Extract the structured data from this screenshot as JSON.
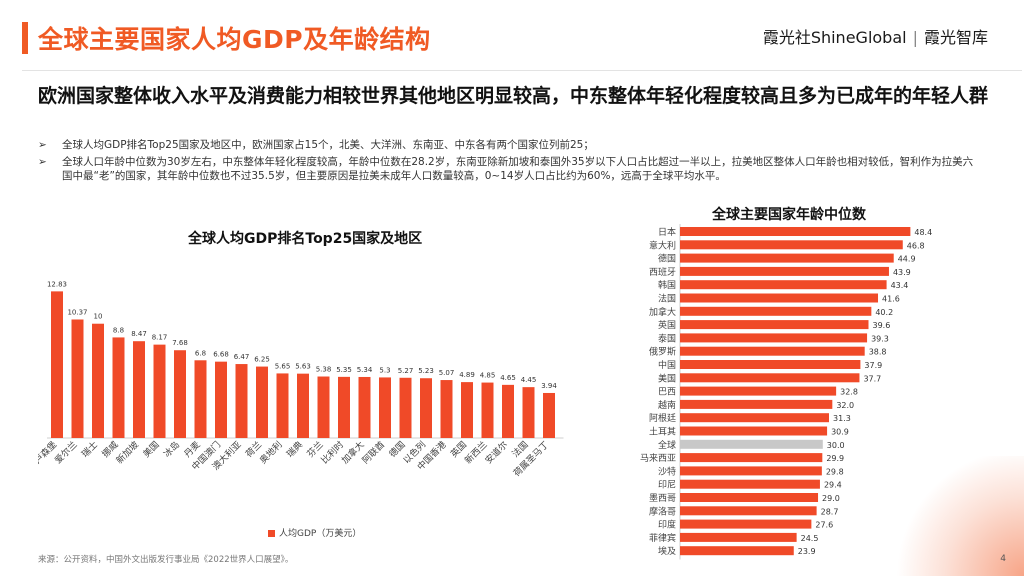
{
  "page": {
    "title": "全球主要国家人均GDP及年龄结构",
    "logo": {
      "left": "霞光社ShineGlobal",
      "right": "霞光智库"
    },
    "subtitle": "欧洲国家整体收入水平及消费能力相较世界其他地区明显较高，中东整体年轻化程度较高且多为已成年的年轻人群",
    "bullets": [
      "全球人均GDP排名Top25国家及地区中，欧洲国家占15个，北美、大洋洲、东南亚、中东各有两个国家位列前25；",
      "全球人口年龄中位数为30岁左右，中东整体年轻化程度较高，年龄中位数在28.2岁，东南亚除新加坡和泰国外35岁以下人口占比超过一半以上，拉美地区整体人口年龄也相对较低，智利作为拉美六国中最“老”的国家，其年龄中位数也不过35.5岁，但主要原因是拉美未成年人口数量较高，0~14岁人口占比约为60%，远高于全球平均水平。"
    ],
    "bullet_marker": "➢",
    "source": "来源：公开资料，中国外文出版发行事业局《2022世界人口展望》。",
    "page_number": "4"
  },
  "colors": {
    "accent": "#F05A24",
    "bar": "#F04A28",
    "highlight": "#C8C8C8"
  },
  "chart_data": [
    {
      "type": "bar",
      "orientation": "vertical",
      "title": "全球人均GDP排名Top25国家及地区",
      "legend": "人均GDP（万美元）",
      "legend_position": "bottom-left",
      "categories": [
        "卢森堡",
        "爱尔兰",
        "瑞士",
        "挪威",
        "新加坡",
        "美国",
        "冰岛",
        "丹麦",
        "中国澳门",
        "澳大利亚",
        "荷兰",
        "奥地利",
        "瑞典",
        "芬兰",
        "比利时",
        "加拿大",
        "阿联酋",
        "德国",
        "以色列",
        "中国香港",
        "英国",
        "新西兰",
        "安道尔",
        "法国",
        "荷属圣马丁"
      ],
      "values": [
        12.83,
        10.37,
        10,
        8.8,
        8.47,
        8.17,
        7.68,
        6.8,
        6.68,
        6.47,
        6.25,
        5.65,
        5.63,
        5.38,
        5.35,
        5.34,
        5.3,
        5.27,
        5.23,
        5.07,
        4.89,
        4.85,
        4.65,
        4.45,
        3.94
      ],
      "labels": [
        "12.83",
        "10.37",
        "10",
        "8.8",
        "8.47",
        "8.17",
        "7.68",
        "6.8",
        "6.68",
        "6.47",
        "6.25",
        "5.65",
        "5.63",
        "5.38",
        "5.35",
        "5.34",
        "5.3",
        "5.27",
        "5.23",
        "5.07",
        "4.89",
        "4.85",
        "4.65",
        "4.45",
        "3.94"
      ],
      "ylim": [
        0,
        14
      ]
    },
    {
      "type": "bar",
      "orientation": "horizontal",
      "title": "全球主要国家年龄中位数",
      "categories": [
        "日本",
        "意大利",
        "德国",
        "西班牙",
        "韩国",
        "法国",
        "加拿大",
        "英国",
        "泰国",
        "俄罗斯",
        "中国",
        "美国",
        "巴西",
        "越南",
        "阿根廷",
        "土耳其",
        "全球",
        "马来西亚",
        "沙特",
        "印尼",
        "墨西哥",
        "摩洛哥",
        "印度",
        "菲律宾",
        "埃及"
      ],
      "values": [
        48.4,
        46.8,
        44.9,
        43.9,
        43.4,
        41.6,
        40.2,
        39.6,
        39.3,
        38.8,
        37.9,
        37.7,
        32.8,
        32.0,
        31.3,
        30.9,
        30.0,
        29.9,
        29.8,
        29.4,
        29.0,
        28.7,
        27.6,
        24.5,
        23.9
      ],
      "labels": [
        "48.4",
        "46.8",
        "44.9",
        "43.9",
        "43.4",
        "41.6",
        "40.2",
        "39.6",
        "39.3",
        "38.8",
        "37.9",
        "37.7",
        "32.8",
        "32.0",
        "31.3",
        "30.9",
        "30.0",
        "29.9",
        "29.8",
        "29.4",
        "29.0",
        "28.7",
        "27.6",
        "24.5",
        "23.9"
      ],
      "highlight_category": "全球",
      "xlim": [
        0,
        50
      ]
    }
  ]
}
